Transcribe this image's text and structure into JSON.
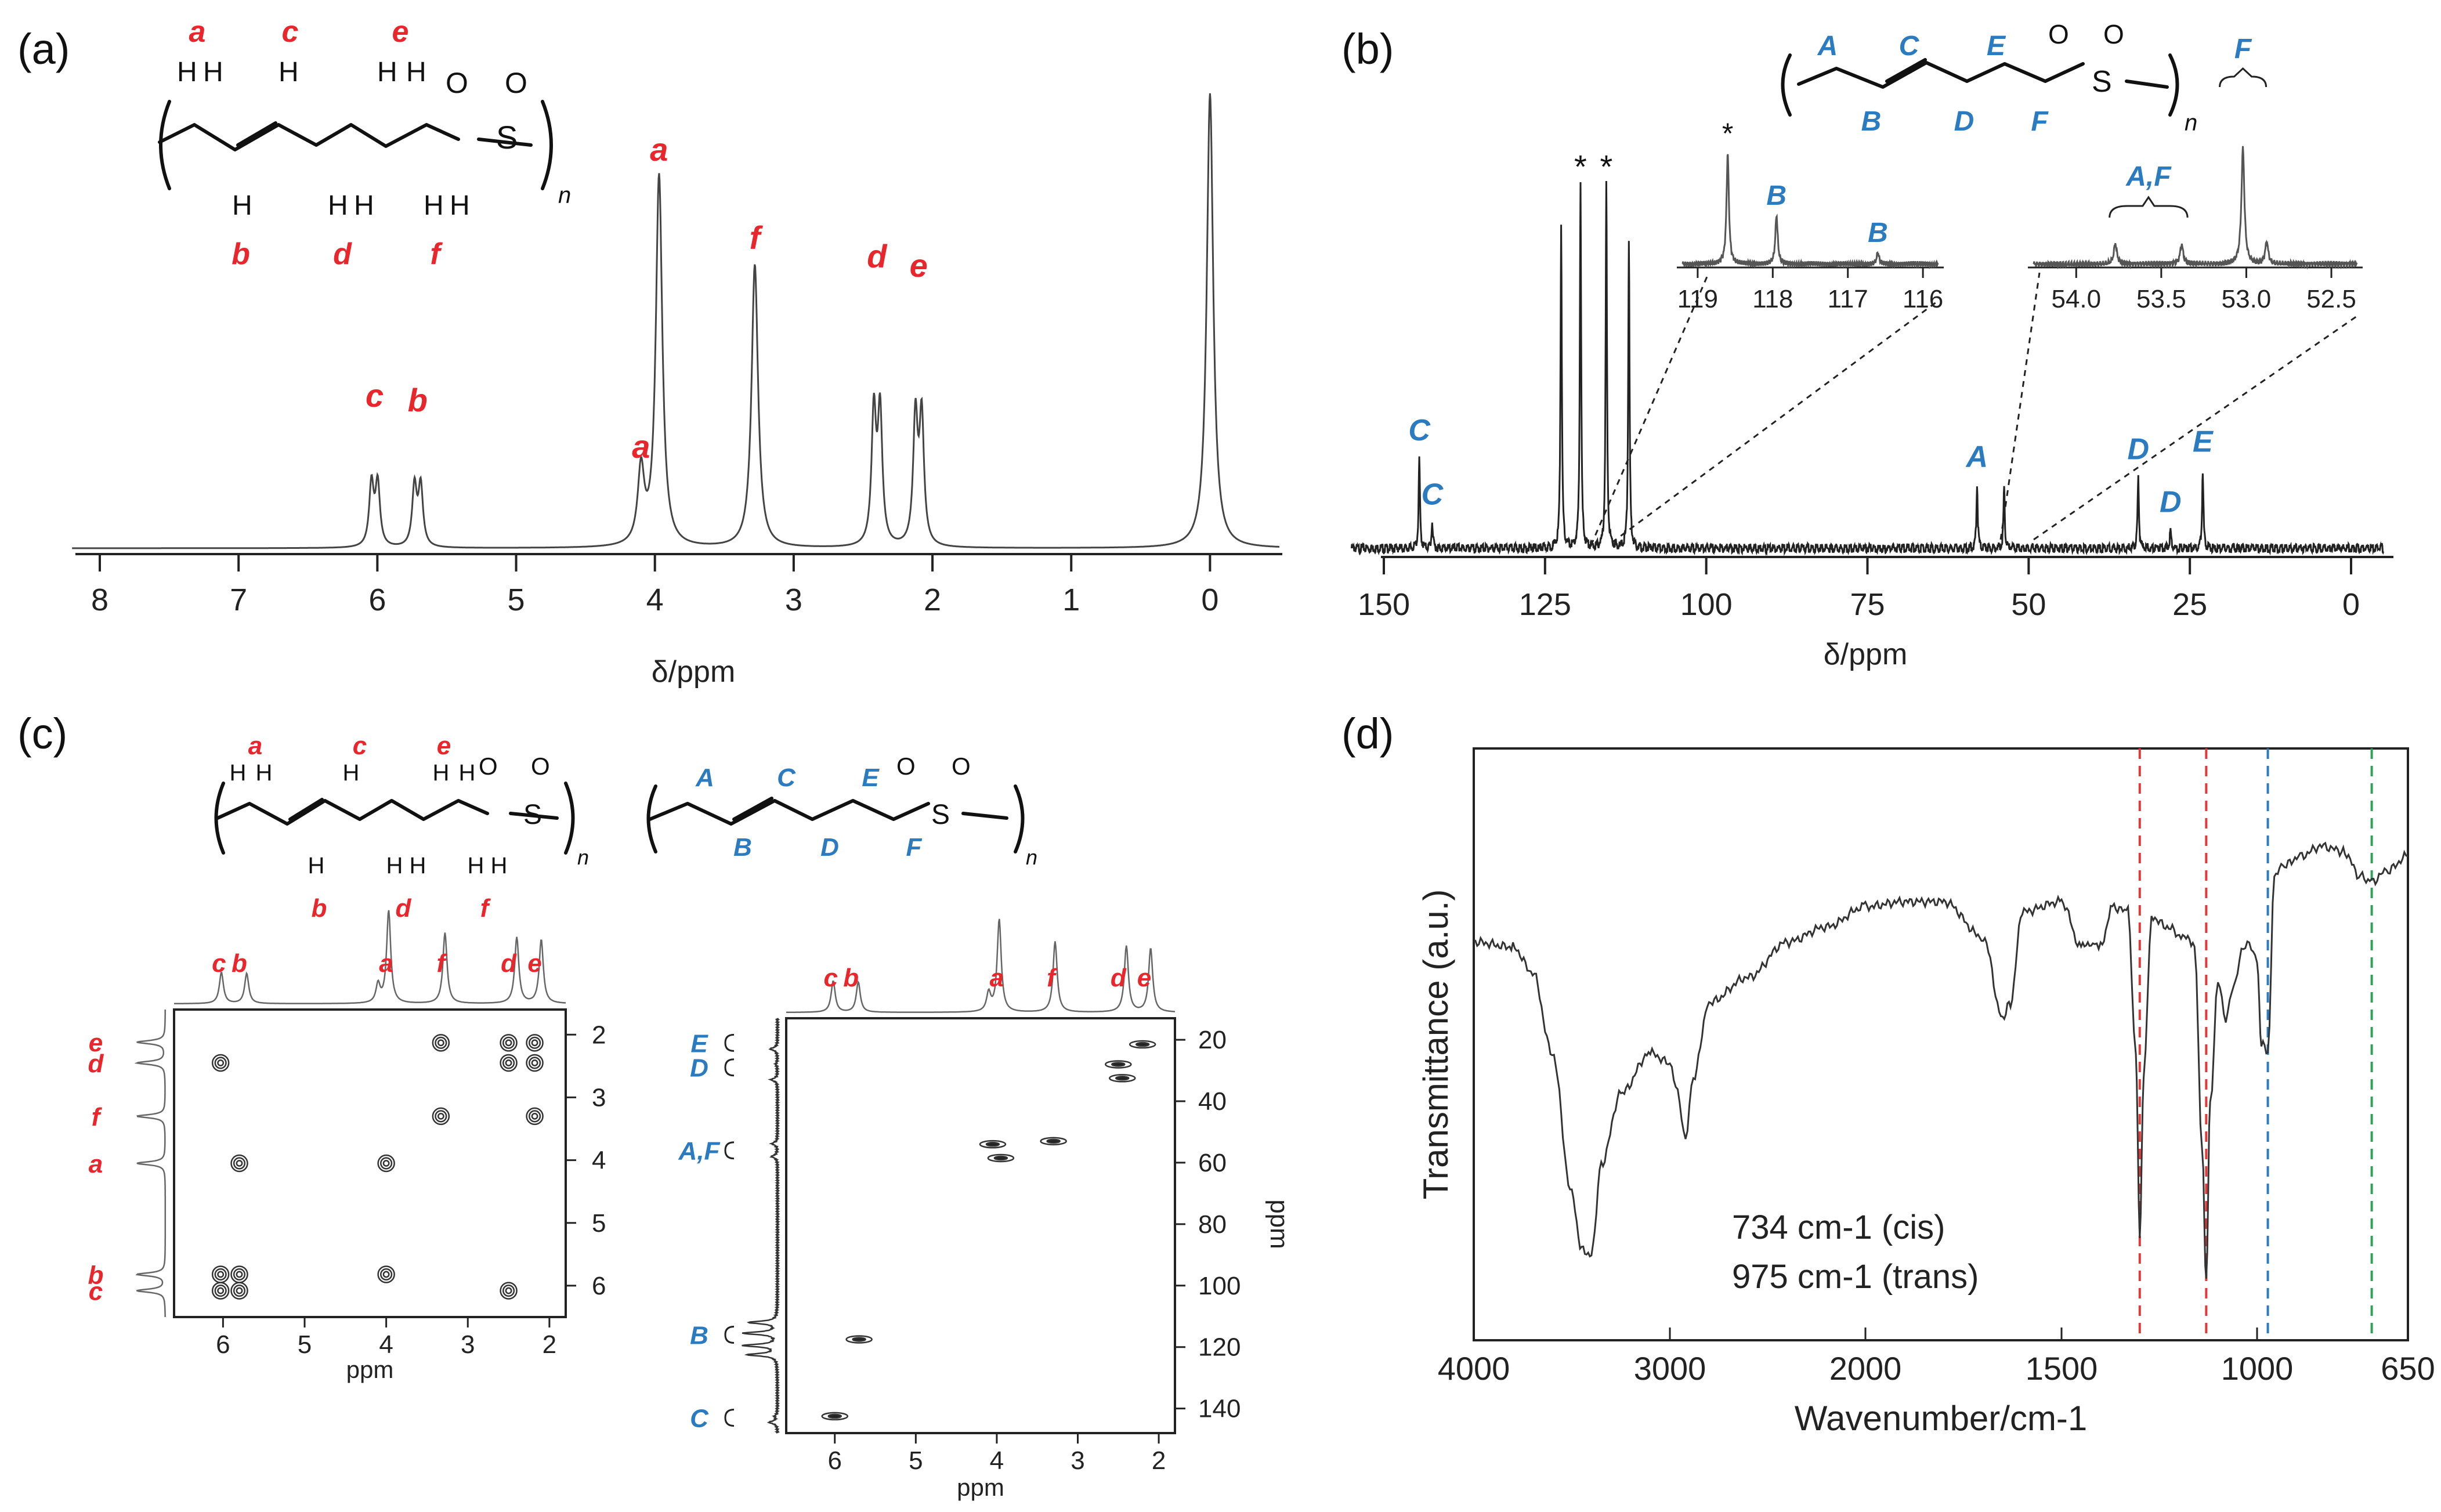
{
  "panels": {
    "a": "(a)",
    "b": "(b)",
    "c": "(c)",
    "d": "(d)"
  },
  "structure": {
    "n": "n",
    "S": "S",
    "O": "O",
    "H": "H"
  },
  "colors": {
    "red": "#e8262b",
    "blue": "#2b7bc0",
    "ir_red": "#e03a3a",
    "ir_blue": "#2b7bc0",
    "ir_green": "#2fa35a"
  },
  "chart_data": [
    {
      "id": "a",
      "type": "line",
      "title": "",
      "xlabel": "δ/ppm",
      "ylabel": "",
      "xlim": [
        8,
        -0.5
      ],
      "xticks": [
        8,
        7,
        6,
        5,
        4,
        3,
        2,
        1,
        0
      ],
      "structure_labels": [
        "a",
        "c",
        "e",
        "b",
        "d",
        "f"
      ],
      "peaks": [
        {
          "x": 6.02,
          "h": 0.27,
          "label": "c"
        },
        {
          "x": 5.71,
          "h": 0.26,
          "label": "b"
        },
        {
          "x": 4.1,
          "h": 0.16,
          "label": "a"
        },
        {
          "x": 3.97,
          "h": 0.8,
          "label": "a"
        },
        {
          "x": 3.28,
          "h": 0.61,
          "label": "f"
        },
        {
          "x": 2.4,
          "h": 0.57,
          "label": "d"
        },
        {
          "x": 2.1,
          "h": 0.55,
          "label": "e"
        },
        {
          "x": 0.0,
          "h": 0.98,
          "label": ""
        }
      ]
    },
    {
      "id": "b",
      "type": "line",
      "title": "",
      "xlabel": "δ/ppm",
      "ylabel": "",
      "xlim": [
        155,
        -5
      ],
      "xticks": [
        150,
        125,
        100,
        75,
        50,
        25,
        0
      ],
      "structure_labels": [
        "A",
        "C",
        "E",
        "B",
        "D",
        "F"
      ],
      "peaks": [
        {
          "x": 144.5,
          "h": 0.24,
          "label": "C"
        },
        {
          "x": 142.5,
          "h": 0.07,
          "label": "C"
        },
        {
          "x": 122.5,
          "h": 0.86,
          "label": ""
        },
        {
          "x": 119.5,
          "h": 0.97,
          "label": "*"
        },
        {
          "x": 115.5,
          "h": 0.97,
          "label": "*"
        },
        {
          "x": 112.0,
          "h": 0.82,
          "label": ""
        },
        {
          "x": 58.0,
          "h": 0.17,
          "label": "A"
        },
        {
          "x": 53.8,
          "h": 0.16,
          "label": ""
        },
        {
          "x": 33.0,
          "h": 0.19,
          "label": "D"
        },
        {
          "x": 28.0,
          "h": 0.05,
          "label": "D"
        },
        {
          "x": 23.0,
          "h": 0.21,
          "label": "E"
        }
      ],
      "insets": [
        {
          "xticks": [
            119,
            118,
            117,
            116
          ],
          "xlim": [
            119.2,
            115.8
          ],
          "peaks": [
            {
              "x": 118.6,
              "h": 0.95,
              "label": "*"
            },
            {
              "x": 117.95,
              "h": 0.42,
              "label": "B"
            },
            {
              "x": 116.6,
              "h": 0.1,
              "label": "B"
            }
          ]
        },
        {
          "xticks": [
            "54.0",
            "53.5",
            "53.0",
            "52.5"
          ],
          "xlim": [
            54.25,
            52.35
          ],
          "brace_labels": [
            "A,F",
            "F"
          ],
          "peaks": [
            {
              "x": 53.77,
              "h": 0.17,
              "label": ""
            },
            {
              "x": 53.38,
              "h": 0.16,
              "label": ""
            },
            {
              "x": 53.02,
              "h": 0.95,
              "label": ""
            },
            {
              "x": 52.88,
              "h": 0.18,
              "label": ""
            }
          ]
        }
      ]
    },
    {
      "id": "c-left",
      "type": "scatter",
      "title": "",
      "xlabel": "ppm",
      "ylabel": "",
      "xlim": [
        6.6,
        1.8
      ],
      "ylim": [
        1.6,
        6.5
      ],
      "xticks": [
        6,
        5,
        4,
        3,
        2
      ],
      "yticks": [
        2,
        3,
        4,
        5,
        6
      ],
      "top_labels": [
        {
          "x": 6.05,
          "t": "c"
        },
        {
          "x": 5.8,
          "t": "b"
        },
        {
          "x": 4.0,
          "t": "a"
        },
        {
          "x": 3.33,
          "t": "f"
        },
        {
          "x": 2.5,
          "t": "d"
        },
        {
          "x": 2.18,
          "t": "e"
        }
      ],
      "side_labels": [
        {
          "y": 2.12,
          "t": "e"
        },
        {
          "y": 2.45,
          "t": "d"
        },
        {
          "y": 3.3,
          "t": "f"
        },
        {
          "y": 4.05,
          "t": "a"
        },
        {
          "y": 5.82,
          "t": "b"
        },
        {
          "y": 6.08,
          "t": "c"
        }
      ],
      "points": [
        [
          3.33,
          2.13
        ],
        [
          2.5,
          2.13
        ],
        [
          2.18,
          2.13
        ],
        [
          6.03,
          2.45
        ],
        [
          2.5,
          2.45
        ],
        [
          2.18,
          2.45
        ],
        [
          3.33,
          3.3
        ],
        [
          2.18,
          3.3
        ],
        [
          5.8,
          4.05
        ],
        [
          4.0,
          4.05
        ],
        [
          6.03,
          5.82
        ],
        [
          5.8,
          5.82
        ],
        [
          4.0,
          5.82
        ],
        [
          6.03,
          6.08
        ],
        [
          5.8,
          6.08
        ],
        [
          2.5,
          6.08
        ]
      ]
    },
    {
      "id": "c-right",
      "type": "scatter",
      "title": "",
      "xlabel": "ppm",
      "ylabel": "ppm",
      "xlim": [
        6.6,
        1.8
      ],
      "ylim": [
        13,
        148
      ],
      "xticks": [
        6,
        5,
        4,
        3,
        2
      ],
      "yticks": [
        20,
        40,
        60,
        80,
        100,
        120,
        140
      ],
      "top_labels": [
        {
          "x": 6.05,
          "t": "c"
        },
        {
          "x": 5.8,
          "t": "b"
        },
        {
          "x": 4.0,
          "t": "a"
        },
        {
          "x": 3.33,
          "t": "f"
        },
        {
          "x": 2.5,
          "t": "d"
        },
        {
          "x": 2.18,
          "t": "e"
        }
      ],
      "side_labels": [
        {
          "y": 21,
          "t": "E"
        },
        {
          "y": 29,
          "t": "D"
        },
        {
          "y": 56,
          "t": "A,F"
        },
        {
          "y": 116,
          "t": "B"
        },
        {
          "y": 143,
          "t": "C"
        }
      ],
      "points": [
        [
          2.2,
          21.5
        ],
        [
          2.5,
          28.0
        ],
        [
          2.45,
          32.5
        ],
        [
          3.3,
          53.0
        ],
        [
          4.05,
          54.0
        ],
        [
          3.95,
          58.5
        ],
        [
          5.7,
          117.5
        ],
        [
          6.0,
          142.5
        ]
      ]
    },
    {
      "id": "d",
      "type": "line",
      "title": "",
      "xlabel": "Wavenumber/cm-1",
      "ylabel": "Transmittance (a.u.)",
      "xticks": [
        4000,
        3000,
        2000,
        1500,
        1000,
        650
      ],
      "annotations": [
        "734 cm-1 (cis)",
        "975 cm-1 (trans)"
      ],
      "vlines": [
        {
          "x": 1300,
          "color": "red"
        },
        {
          "x": 1130,
          "color": "red"
        },
        {
          "x": 975,
          "color": "blue"
        },
        {
          "x": 734,
          "color": "green"
        }
      ],
      "x": [
        4000,
        3800,
        3700,
        3600,
        3500,
        3450,
        3400,
        3350,
        3250,
        3100,
        3000,
        2960,
        2920,
        2880,
        2800,
        2600,
        2400,
        2200,
        2000,
        1900,
        1800,
        1700,
        1650,
        1630,
        1600,
        1500,
        1450,
        1420,
        1400,
        1370,
        1330,
        1310,
        1300,
        1290,
        1270,
        1230,
        1190,
        1160,
        1140,
        1130,
        1120,
        1100,
        1080,
        1060,
        1040,
        1020,
        1000,
        990,
        975,
        960,
        940,
        900,
        850,
        800,
        760,
        734,
        700,
        650
      ],
      "y": [
        0.72,
        0.71,
        0.66,
        0.5,
        0.22,
        0.11,
        0.1,
        0.28,
        0.42,
        0.5,
        0.48,
        0.42,
        0.33,
        0.45,
        0.6,
        0.65,
        0.72,
        0.75,
        0.79,
        0.8,
        0.8,
        0.73,
        0.57,
        0.6,
        0.78,
        0.8,
        0.71,
        0.72,
        0.71,
        0.79,
        0.78,
        0.5,
        0.14,
        0.45,
        0.77,
        0.75,
        0.73,
        0.72,
        0.3,
        0.05,
        0.4,
        0.64,
        0.57,
        0.63,
        0.7,
        0.72,
        0.68,
        0.52,
        0.5,
        0.85,
        0.87,
        0.89,
        0.91,
        0.9,
        0.85,
        0.84,
        0.86,
        0.89
      ]
    }
  ]
}
